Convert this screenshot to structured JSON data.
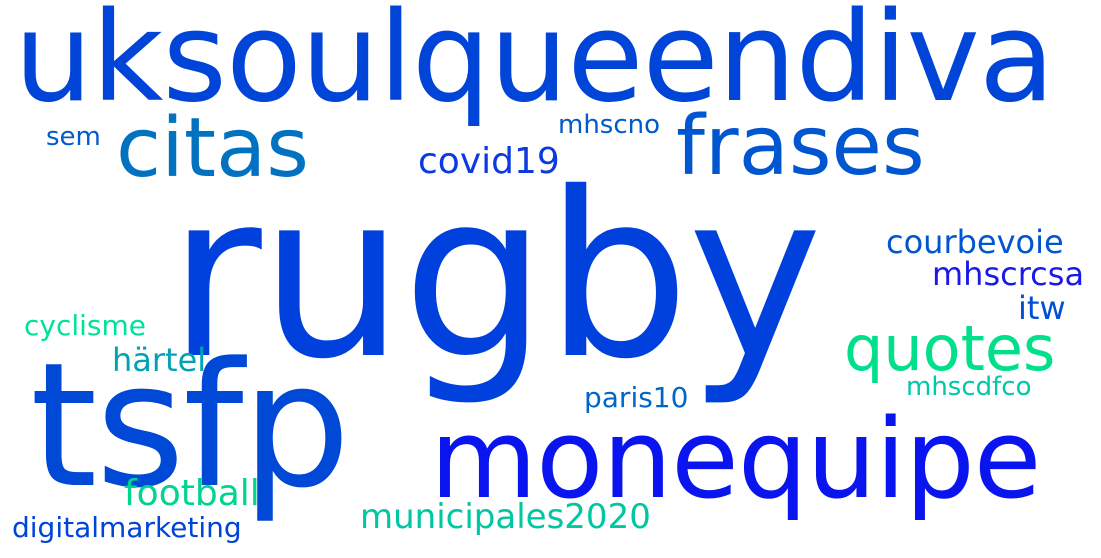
{
  "words": [
    {
      "text": "rugby",
      "color": "#0040dd"
    },
    {
      "text": "uksoulqueendiva",
      "color": "#0044d8"
    },
    {
      "text": "tsfp",
      "color": "#0048d6"
    },
    {
      "text": "monequipe",
      "color": "#0a14ee"
    },
    {
      "text": "citas",
      "color": "#0072c0"
    },
    {
      "text": "frases",
      "color": "#0056d0"
    },
    {
      "text": "quotes",
      "color": "#00e08a"
    },
    {
      "text": "covid19",
      "color": "#0a3ae0"
    },
    {
      "text": "sem",
      "color": "#005ad0"
    },
    {
      "text": "mhscno",
      "color": "#005acd"
    },
    {
      "text": "courbevoie",
      "color": "#0056d0"
    },
    {
      "text": "mhscrcsa",
      "color": "#1a1ae8"
    },
    {
      "text": "itw",
      "color": "#0050d4"
    },
    {
      "text": "cyclisme",
      "color": "#00e29a"
    },
    {
      "text": "härtel",
      "color": "#00a3b4"
    },
    {
      "text": "paris10",
      "color": "#0066c8"
    },
    {
      "text": "mhscdfco",
      "color": "#00c8a8"
    },
    {
      "text": "football",
      "color": "#00d490"
    },
    {
      "text": "municipales2020",
      "color": "#00c6a2"
    },
    {
      "text": "digitalmarketing",
      "color": "#0044d8"
    }
  ]
}
